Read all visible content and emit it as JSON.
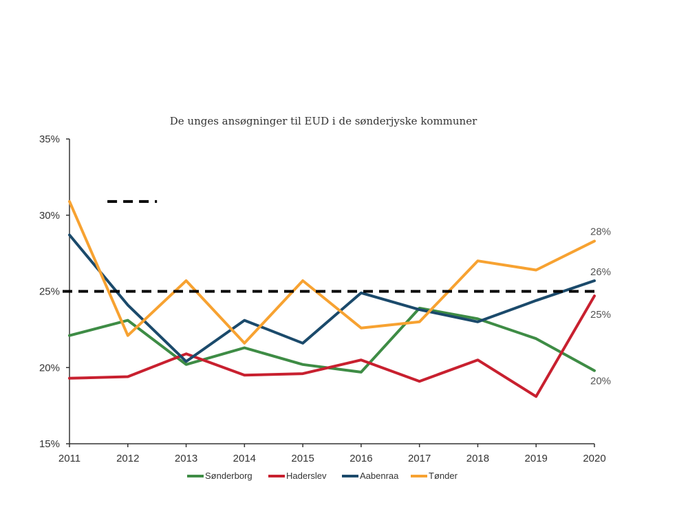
{
  "chart_data": {
    "type": "line",
    "title": "De unges ansøgninger til EUD i de sønderjyske kommuner",
    "xlabel": "",
    "ylabel": "",
    "categories": [
      "2011",
      "2012",
      "2013",
      "2014",
      "2015",
      "2016",
      "2017",
      "2018",
      "2019",
      "2020"
    ],
    "y_ticks": [
      "15%",
      "20%",
      "25%",
      "30%",
      "35%"
    ],
    "y_tick_values": [
      15,
      20,
      25,
      30,
      35
    ],
    "ylim": [
      15,
      35
    ],
    "grid": false,
    "legend_position": "bottom",
    "series": [
      {
        "name": "Sønderborg",
        "color": "#3E8C45",
        "values": [
          22.1,
          23.1,
          20.2,
          21.3,
          20.2,
          19.7,
          23.9,
          23.2,
          21.9,
          19.8
        ],
        "end_label": "20%"
      },
      {
        "name": "Haderslev",
        "color": "#C8202F",
        "values": [
          19.3,
          19.4,
          20.9,
          19.5,
          19.6,
          20.5,
          19.1,
          20.5,
          18.1,
          24.7
        ],
        "end_label": "25%"
      },
      {
        "name": "Aabenraa",
        "color": "#1B4A6B",
        "values": [
          28.7,
          24.1,
          20.4,
          23.1,
          21.6,
          24.9,
          23.8,
          23.0,
          24.4,
          25.7
        ],
        "end_label": "26%"
      },
      {
        "name": "Tønder",
        "color": "#F7A231",
        "values": [
          30.9,
          22.1,
          25.7,
          21.6,
          25.7,
          22.6,
          23.0,
          27.0,
          26.4,
          28.3
        ],
        "end_label": "28%"
      }
    ],
    "reference_lines": [
      {
        "value": 25,
        "from_category": "2011",
        "to_category": "2020",
        "style": "dashed",
        "color": "#000000"
      },
      {
        "value": 30.9,
        "from_category": "2011.65",
        "to_category": "2012.5",
        "style": "dashed",
        "color": "#000000"
      }
    ]
  }
}
